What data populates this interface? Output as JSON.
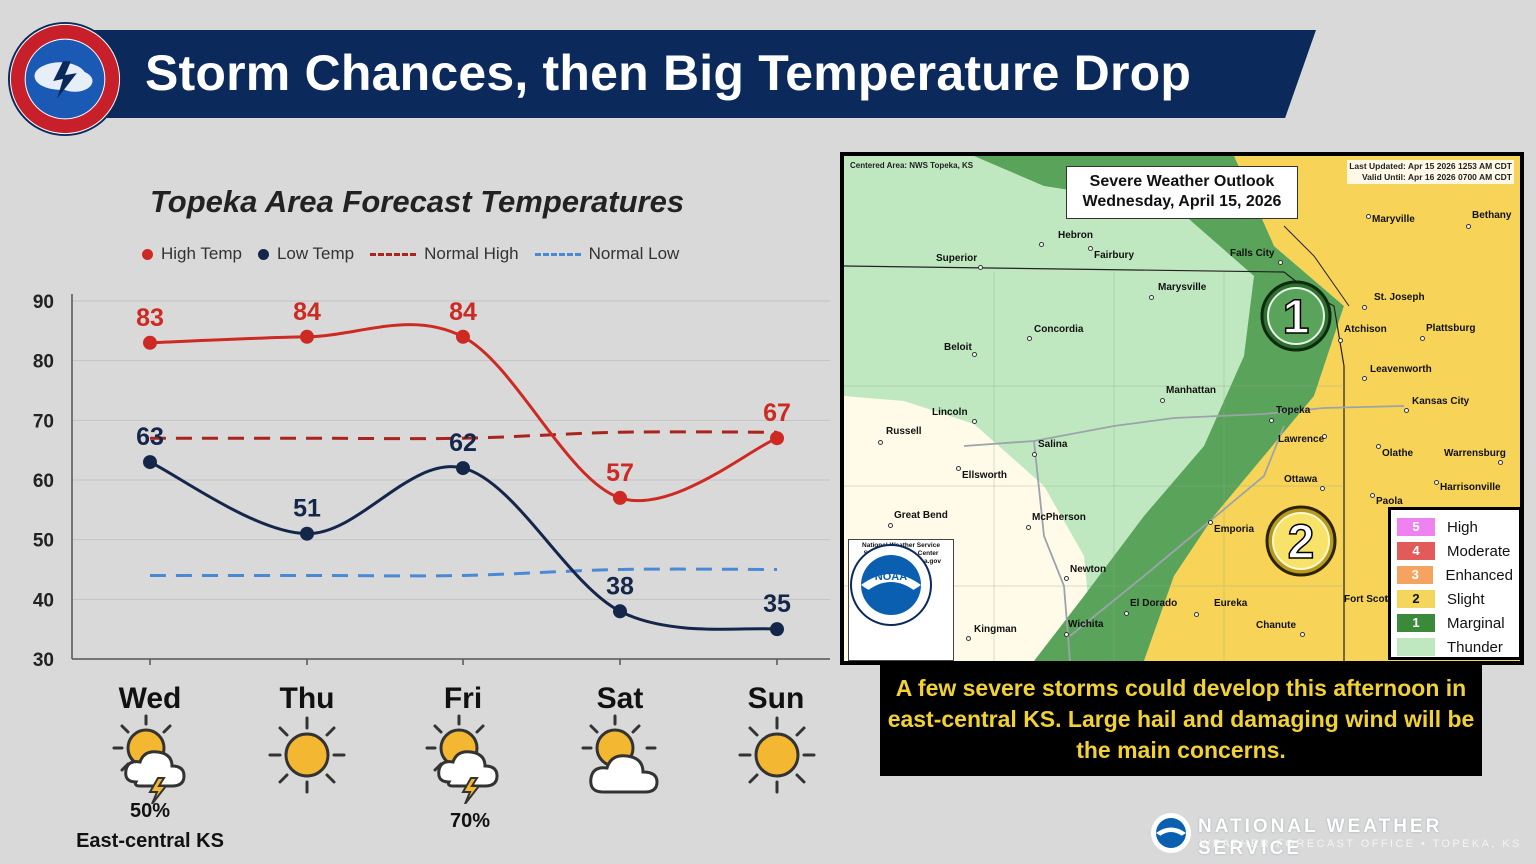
{
  "header": {
    "title": "Storm Chances, then Big Temperature Drop"
  },
  "chart_data": {
    "type": "line",
    "title": "Topeka Area Forecast Temperatures",
    "categories": [
      "Wed",
      "Thu",
      "Fri",
      "Sat",
      "Sun"
    ],
    "ylim": [
      30,
      90
    ],
    "yticks": [
      30,
      40,
      50,
      60,
      70,
      80,
      90
    ],
    "grid": true,
    "series": [
      {
        "name": "High Temp",
        "values": [
          83,
          84,
          84,
          57,
          67
        ],
        "color": "#cc2a22",
        "style": "solid"
      },
      {
        "name": "Low Temp",
        "values": [
          63,
          51,
          62,
          38,
          35
        ],
        "color": "#14264a",
        "style": "solid"
      },
      {
        "name": "Normal High",
        "values": [
          67,
          67,
          67,
          68,
          68
        ],
        "color": "#a8241c",
        "style": "dashed"
      },
      {
        "name": "Normal Low",
        "values": [
          44,
          44,
          44,
          45,
          45
        ],
        "color": "#4a8ad4",
        "style": "dashed"
      }
    ],
    "legend": {
      "high": "High Temp",
      "low": "Low Temp",
      "normal_high": "Normal High",
      "normal_low": "Normal Low"
    }
  },
  "days": [
    {
      "label": "Wed",
      "icon": "partly-cloudy-thunderstorm-icon",
      "pop": "50%",
      "pop_area": "East-central KS"
    },
    {
      "label": "Thu",
      "icon": "sun-icon",
      "pop": "",
      "pop_area": ""
    },
    {
      "label": "Fri",
      "icon": "partly-cloudy-thunderstorm-icon",
      "pop": "70%",
      "pop_area": ""
    },
    {
      "label": "Sat",
      "icon": "partly-cloudy-icon",
      "pop": "",
      "pop_area": ""
    },
    {
      "label": "Sun",
      "icon": "sun-icon",
      "pop": "",
      "pop_area": ""
    }
  ],
  "map": {
    "centered_area": "Centered Area: NWS Topeka, KS",
    "last_updated": "Last Updated: Apr 15 2026 1253 AM CDT",
    "valid_until": "Valid Until: Apr 16 2026 0700 AM CDT",
    "title_line1": "Severe Weather Outlook",
    "title_line2": "Wednesday, April 15, 2026",
    "marker1": "1",
    "marker2": "2",
    "cities": [
      "Maryville",
      "Bethany",
      "Hebron",
      "Fairbury",
      "Falls City",
      "Superior",
      "Marysville",
      "St. Joseph",
      "Concordia",
      "Atchison",
      "Plattsburg",
      "Beloit",
      "Leavenworth",
      "Manhattan",
      "Kansas City",
      "Lincoln",
      "Topeka",
      "Russell",
      "Lawrence",
      "Salina",
      "Olathe",
      "Warrensburg",
      "Ellsworth",
      "Ottawa",
      "Harrisonville",
      "Great Bend",
      "McPherson",
      "Paola",
      "Emporia",
      "Newton",
      "El Dorado",
      "Eureka",
      "Fort Scott",
      "Kingman",
      "Wichita",
      "Chanute"
    ],
    "legend": [
      {
        "num": "5",
        "label": "High",
        "color": "#ee82ee"
      },
      {
        "num": "4",
        "label": "Moderate",
        "color": "#e35a5a"
      },
      {
        "num": "3",
        "label": "Enhanced",
        "color": "#f4a460"
      },
      {
        "num": "2",
        "label": "Slight",
        "color": "#f5d65c"
      },
      {
        "num": "1",
        "label": "Marginal",
        "color": "#3a8a3a"
      },
      {
        "num": "",
        "label": "Thunder",
        "color": "#c0e8c0"
      }
    ],
    "noaa": {
      "logo_text": "NOAA",
      "line1": "National Weather Service",
      "line2": "Storm Prediction Center",
      "line3": "https://www.spc.noaa.gov"
    }
  },
  "message": "A few severe storms could develop this afternoon in east-central KS. Large hail and damaging wind will be the main concerns.",
  "footer": {
    "title": "NATIONAL WEATHER SERVICE",
    "subtitle": "WEATHER FORECAST OFFICE • TOPEKA, KS"
  },
  "colors": {
    "banner": "#0b2a5b",
    "message_bg": "#000000",
    "message_text": "#f2d133"
  }
}
